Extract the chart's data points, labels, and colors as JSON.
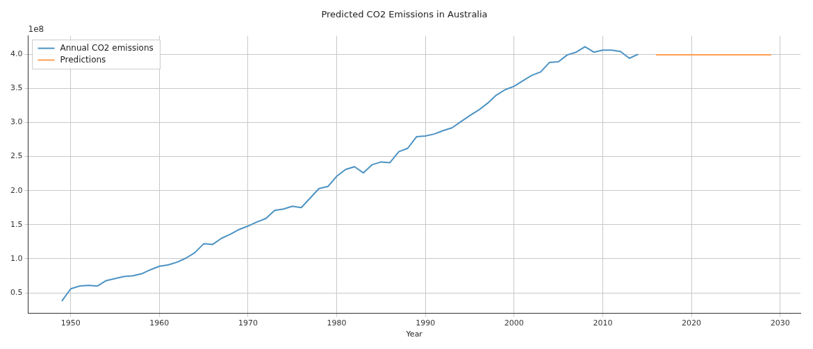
{
  "chart_data": {
    "type": "line",
    "title": "Predicted CO2 Emissions in Australia",
    "xlabel": "Year",
    "annotations": [
      "1e8"
    ],
    "xlim": [
      1945.2,
      2032.3
    ],
    "xticks": [
      1950,
      1960,
      1970,
      1980,
      1990,
      2000,
      2010,
      2020,
      2030
    ],
    "ylim": [
      0.2,
      4.27
    ],
    "yticks": [
      {
        "value": 0.5,
        "label": "0.5"
      },
      {
        "value": 1,
        "label": "1.0"
      },
      {
        "value": 1.5,
        "label": "1.5"
      },
      {
        "value": 2,
        "label": "2.0"
      },
      {
        "value": 2.5,
        "label": "2.5"
      },
      {
        "value": 3,
        "label": "3.0"
      },
      {
        "value": 3.5,
        "label": "3.5"
      },
      {
        "value": 4,
        "label": "4.0"
      }
    ],
    "grid": true,
    "legend": "top left",
    "marker": "none",
    "line_style": "solid",
    "series": [
      {
        "name": "Annual CO2 emissions",
        "color": "#4b92c3",
        "x": [
          1949,
          1950,
          1951,
          1952,
          1953,
          1954,
          1955,
          1956,
          1957,
          1958,
          1959,
          1960,
          1961,
          1962,
          1963,
          1964,
          1965,
          1966,
          1967,
          1968,
          1969,
          1970,
          1971,
          1972,
          1973,
          1974,
          1975,
          1976,
          1977,
          1978,
          1979,
          1980,
          1981,
          1982,
          1983,
          1984,
          1985,
          1986,
          1987,
          1988,
          1989,
          1990,
          1991,
          1992,
          1993,
          1994,
          1995,
          1996,
          1997,
          1998,
          1999,
          2000,
          2001,
          2002,
          2003,
          2004,
          2005,
          2006,
          2007,
          2008,
          2009,
          2010,
          2011,
          2012,
          2013,
          2014
        ],
        "values": [
          0.38,
          0.56,
          0.6,
          0.61,
          0.6,
          0.68,
          0.71,
          0.74,
          0.75,
          0.78,
          0.84,
          0.89,
          0.91,
          0.95,
          1.01,
          1.09,
          1.22,
          1.21,
          1.3,
          1.36,
          1.43,
          1.48,
          1.54,
          1.59,
          1.71,
          1.73,
          1.77,
          1.75,
          1.89,
          2.03,
          2.06,
          2.21,
          2.31,
          2.35,
          2.26,
          2.38,
          2.42,
          2.41,
          2.57,
          2.62,
          2.79,
          2.8,
          2.83,
          2.88,
          2.92,
          3.01,
          3.1,
          3.18,
          3.28,
          3.4,
          3.48,
          3.53,
          3.61,
          3.69,
          3.74,
          3.88,
          3.89,
          3.99,
          4.03,
          4.11,
          4.03,
          4.06,
          4.06,
          4.04,
          3.94,
          4.0
        ]
      },
      {
        "name": "Predictions",
        "color": "#ff9d4f",
        "x": [
          2016,
          2017,
          2018,
          2019,
          2020,
          2021,
          2022,
          2023,
          2024,
          2025,
          2026,
          2027,
          2028,
          2029
        ],
        "values": [
          3.99,
          3.99,
          3.99,
          3.99,
          3.99,
          3.99,
          3.99,
          3.99,
          3.99,
          3.99,
          3.99,
          3.99,
          3.99,
          3.99
        ]
      }
    ]
  }
}
